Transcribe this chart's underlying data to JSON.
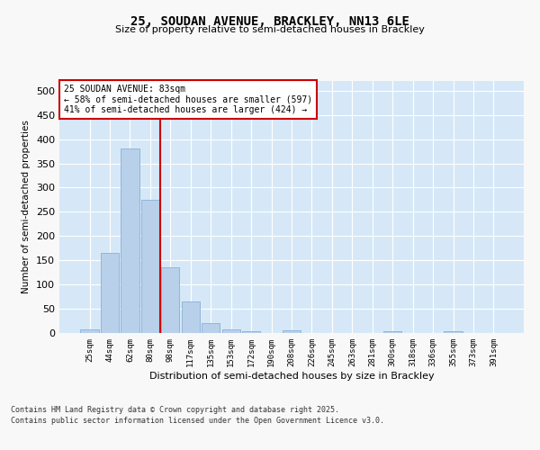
{
  "title_line1": "25, SOUDAN AVENUE, BRACKLEY, NN13 6LE",
  "title_line2": "Size of property relative to semi-detached houses in Brackley",
  "xlabel": "Distribution of semi-detached houses by size in Brackley",
  "ylabel": "Number of semi-detached properties",
  "bar_labels": [
    "25sqm",
    "44sqm",
    "62sqm",
    "80sqm",
    "98sqm",
    "117sqm",
    "135sqm",
    "153sqm",
    "172sqm",
    "190sqm",
    "208sqm",
    "226sqm",
    "245sqm",
    "263sqm",
    "281sqm",
    "300sqm",
    "318sqm",
    "336sqm",
    "355sqm",
    "373sqm",
    "391sqm"
  ],
  "bar_values": [
    8,
    165,
    380,
    275,
    135,
    65,
    20,
    8,
    3,
    0,
    5,
    0,
    0,
    0,
    0,
    3,
    0,
    0,
    3,
    0,
    0
  ],
  "bar_color": "#b8d0ea",
  "bar_edge_color": "#8ab0d5",
  "background_color": "#d6e8f7",
  "grid_color": "#ffffff",
  "vline_color": "#cc0000",
  "annotation_title": "25 SOUDAN AVENUE: 83sqm",
  "annotation_line1": "← 58% of semi-detached houses are smaller (597)",
  "annotation_line2": "41% of semi-detached houses are larger (424) →",
  "annotation_box_facecolor": "#ffffff",
  "annotation_box_edgecolor": "#cc0000",
  "footer_line1": "Contains HM Land Registry data © Crown copyright and database right 2025.",
  "footer_line2": "Contains public sector information licensed under the Open Government Licence v3.0.",
  "fig_facecolor": "#f8f8f8",
  "ylim": [
    0,
    520
  ],
  "yticks": [
    0,
    50,
    100,
    150,
    200,
    250,
    300,
    350,
    400,
    450,
    500
  ]
}
